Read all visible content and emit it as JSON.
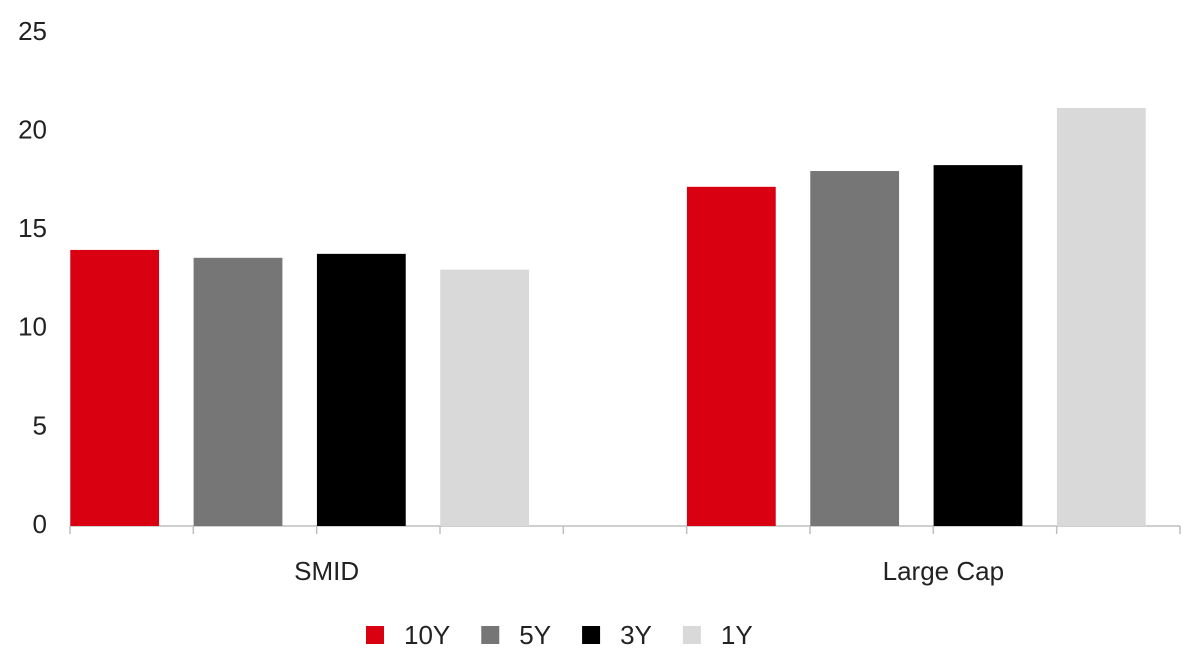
{
  "chart_data": {
    "type": "bar",
    "categories": [
      "SMID",
      "Large Cap"
    ],
    "series": [
      {
        "name": "10Y",
        "color": "#d90012",
        "values": [
          14.0,
          17.2
        ]
      },
      {
        "name": "5Y",
        "color": "#767676",
        "values": [
          13.6,
          18.0
        ]
      },
      {
        "name": "3Y",
        "color": "#000000",
        "values": [
          13.8,
          18.3
        ]
      },
      {
        "name": "1Y",
        "color": "#d9d9d9",
        "values": [
          13.0,
          21.2
        ]
      }
    ],
    "ylim": [
      0,
      25
    ],
    "yticks": [
      0,
      5,
      10,
      15,
      20,
      25
    ],
    "grid": false,
    "legend": "bottom"
  }
}
